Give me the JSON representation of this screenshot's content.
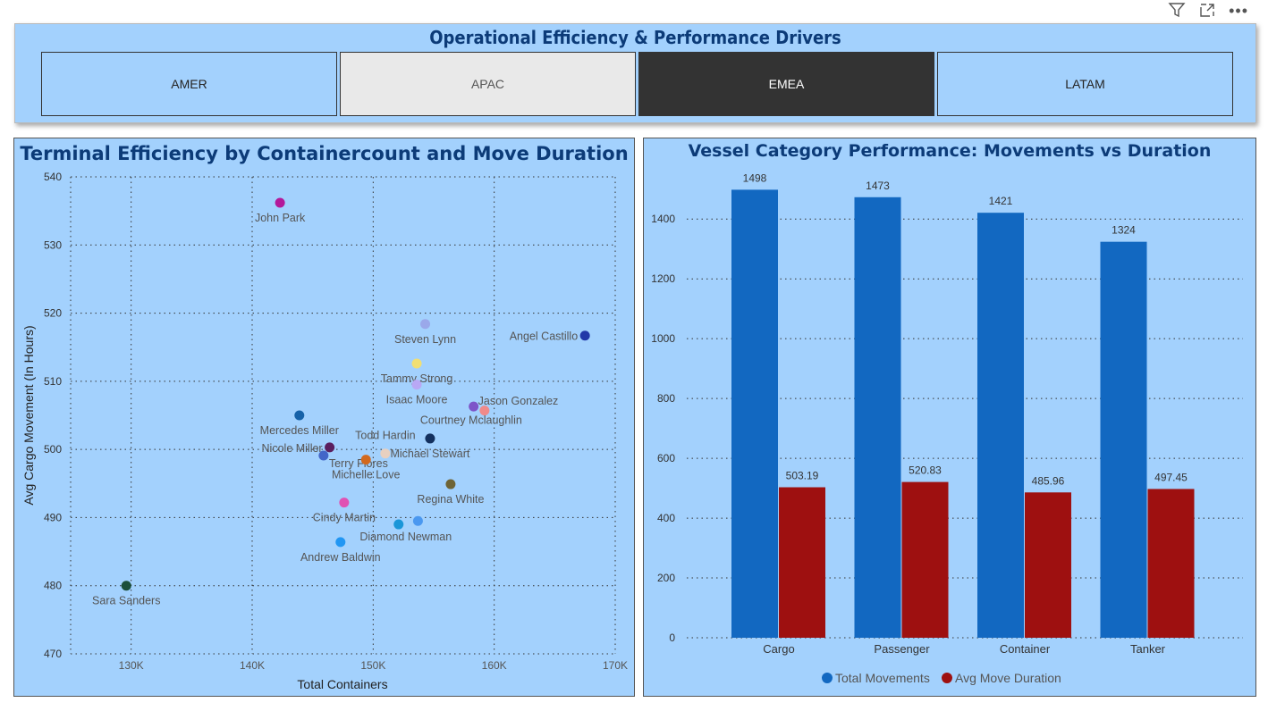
{
  "header_icons": [
    "filter-icon",
    "focus-mode-icon",
    "more-options-icon"
  ],
  "slicer": {
    "title": "Operational Efficiency & Performance Drivers",
    "options": [
      {
        "label": "AMER",
        "state": "normal"
      },
      {
        "label": "APAC",
        "state": "hover"
      },
      {
        "label": "EMEA",
        "state": "selected"
      },
      {
        "label": "LATAM",
        "state": "normal"
      }
    ]
  },
  "chart_data": [
    {
      "type": "scatter",
      "title": "Terminal Efficiency by Containercount and Move Duration",
      "xlabel": "Total Containers",
      "ylabel": "Avg Cargo Movement (In Hours)",
      "xlim": [
        125000,
        170000
      ],
      "ylim": [
        470,
        540
      ],
      "xticks": [
        {
          "v": 130000,
          "l": "130K"
        },
        {
          "v": 140000,
          "l": "140K"
        },
        {
          "v": 150000,
          "l": "150K"
        },
        {
          "v": 160000,
          "l": "160K"
        },
        {
          "v": 170000,
          "l": "170K"
        }
      ],
      "yticks": [
        470,
        480,
        490,
        500,
        510,
        520,
        530,
        540
      ],
      "grid": true,
      "points": [
        {
          "name": "John Park",
          "x": 142300,
          "y": 536.2,
          "color": "#b3199a",
          "lp": "below"
        },
        {
          "name": "Steven Lynn",
          "x": 154300,
          "y": 518.4,
          "color": "#9aa8ea",
          "lp": "below"
        },
        {
          "name": "Angel Castillo",
          "x": 167500,
          "y": 516.7,
          "color": "#2238a8",
          "lp": "left"
        },
        {
          "name": "Tammy Strong",
          "x": 153600,
          "y": 512.6,
          "color": "#f1df73",
          "lp": "below"
        },
        {
          "name": "Isaac Moore",
          "x": 153600,
          "y": 509.5,
          "color": "#b9a8f5",
          "lp": "below"
        },
        {
          "name": "Jason Gonzalez",
          "x": 158300,
          "y": 506.3,
          "color": "#7d55c8",
          "lp": "aboveright"
        },
        {
          "name": "Courtney Mclaughlin",
          "x": 159200,
          "y": 505.7,
          "color": "#f08a8a",
          "lp": "belowleft"
        },
        {
          "name": "Mercedes Miller",
          "x": 143900,
          "y": 505.0,
          "color": "#1762a8",
          "lp": "below"
        },
        {
          "name": "Michael Stewart",
          "x": 154700,
          "y": 501.6,
          "color": "#13305e",
          "lp": "below"
        },
        {
          "name": "Nicole Miller",
          "x": 146400,
          "y": 500.3,
          "color": "#5a1f5e",
          "lp": "left"
        },
        {
          "name": "Terry Flores",
          "x": 145900,
          "y": 499.1,
          "color": "#4366c8",
          "lp": "right"
        },
        {
          "name": "Todd Hardin",
          "x": 151000,
          "y": 499.4,
          "color": "#e8d0c0",
          "lp": "above"
        },
        {
          "name": "Michelle Love",
          "x": 149400,
          "y": 498.5,
          "color": "#d2691e",
          "lp": "below"
        },
        {
          "name": "Regina White",
          "x": 156400,
          "y": 494.9,
          "color": "#6e6436",
          "lp": "below"
        },
        {
          "name": "Cindy Martin",
          "x": 147600,
          "y": 492.2,
          "color": "#e052b3",
          "lp": "below"
        },
        {
          "name": "Diamond Newman",
          "x": 152100,
          "y": 489.0,
          "color": "#1a96d8",
          "lp": "belowright"
        },
        {
          "name": "",
          "x": 153700,
          "y": 489.5,
          "color": "#4a98f0",
          "lp": "none"
        },
        {
          "name": "Andrew Baldwin",
          "x": 147300,
          "y": 486.4,
          "color": "#2196f3",
          "lp": "below"
        },
        {
          "name": "Sara Sanders",
          "x": 129600,
          "y": 480.0,
          "color": "#1c4f3a",
          "lp": "below"
        }
      ]
    },
    {
      "type": "bar",
      "title": "Vessel Category Performance: Movements vs Duration",
      "categories": [
        "Cargo",
        "Passenger",
        "Container",
        "Tanker"
      ],
      "ylim": [
        0,
        1550
      ],
      "yticks": [
        0,
        200,
        400,
        600,
        800,
        1000,
        1200,
        1400
      ],
      "series": [
        {
          "name": "Total Movements",
          "color": "#1268c1",
          "values": [
            1498,
            1473,
            1421,
            1324
          ]
        },
        {
          "name": "Avg Move Duration",
          "color": "#9e1010",
          "values": [
            503.19,
            520.83,
            485.96,
            497.45
          ]
        }
      ],
      "legend": "bottom"
    }
  ]
}
